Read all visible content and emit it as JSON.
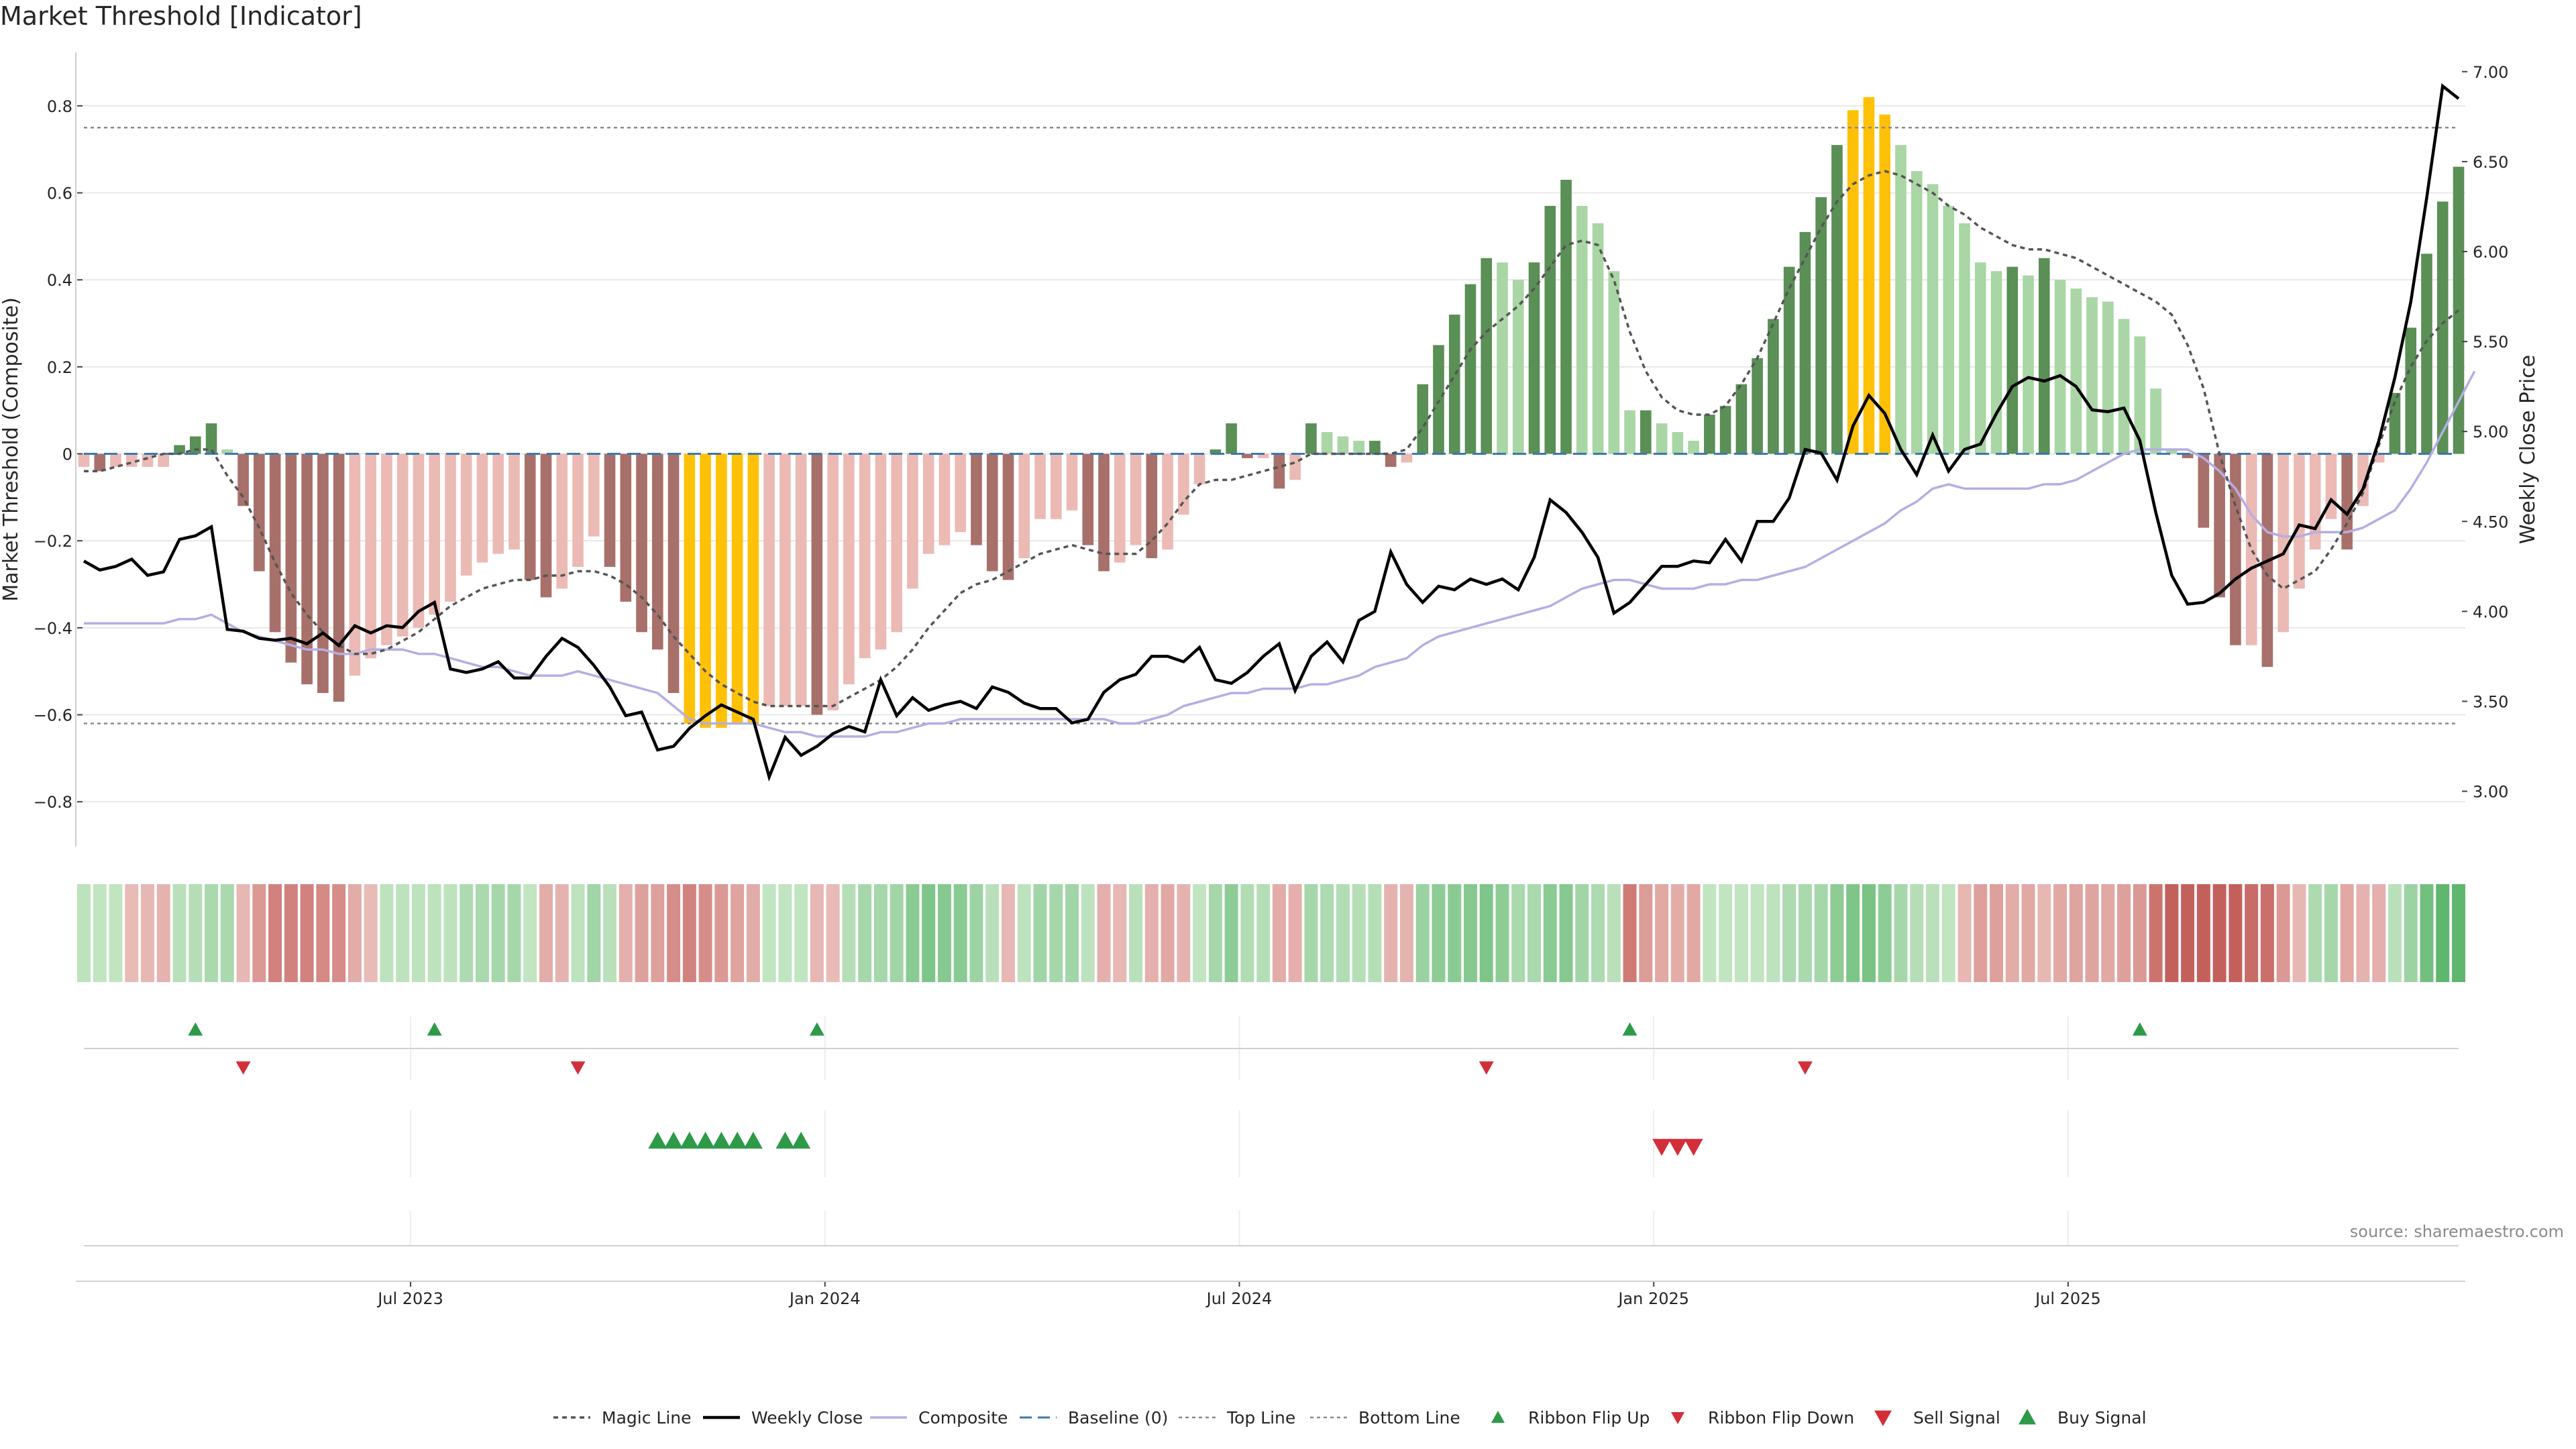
{
  "title": "Market Threshold [Indicator]",
  "source": "source: sharemaestro.com",
  "colors": {
    "dark_green": "#5a8f55",
    "light_green": "#a9d6a4",
    "dark_red": "#a8706a",
    "light_red": "#ebbab5",
    "gold": "#ffc107",
    "close": "#000000",
    "composite": "#b5aee3",
    "magic": "#555555",
    "baseline": "#3c78b0",
    "threshold_line": "#8a8a8a",
    "ribbon_up": "#2e9a48",
    "ribbon_down": "#d32f3a",
    "buy": "#2e9a48",
    "sell": "#d32f3a",
    "grid": "#e8e8e8"
  },
  "chart_data": {
    "type": "bar",
    "ylabel_left": "Market Threshold (Composite)",
    "ylabel_right": "Weekly Close Price",
    "ylim_left": [
      -0.9,
      0.92
    ],
    "ylim_right": [
      2.7,
      7.1
    ],
    "yticks_left": [
      "−0.8",
      "−0.6",
      "−0.4",
      "−0.2",
      "0",
      "0.2",
      "0.4",
      "0.6",
      "0.8"
    ],
    "yticks_right": [
      "3.00",
      "3.50",
      "4.00",
      "4.50",
      "5.00",
      "5.50",
      "6.00",
      "6.50",
      "7.00"
    ],
    "x_ticks": [
      {
        "label": "Jul 2023",
        "week": 20.5
      },
      {
        "label": "Jan 2024",
        "week": 46.5
      },
      {
        "label": "Jul 2024",
        "week": 72.5
      },
      {
        "label": "Jan 2025",
        "week": 98.5
      },
      {
        "label": "Jul 2025",
        "week": 124.5
      }
    ],
    "top_line": 0.75,
    "bottom_line": -0.62,
    "baseline": 0,
    "composite_values": [
      -0.03,
      -0.04,
      -0.03,
      -0.03,
      -0.03,
      -0.03,
      0.02,
      0.04,
      0.07,
      0.01,
      -0.12,
      -0.27,
      -0.41,
      -0.48,
      -0.53,
      -0.55,
      -0.57,
      -0.51,
      -0.47,
      -0.44,
      -0.42,
      -0.4,
      -0.37,
      -0.34,
      -0.28,
      -0.25,
      -0.23,
      -0.22,
      -0.29,
      -0.33,
      -0.31,
      -0.26,
      -0.19,
      -0.26,
      -0.34,
      -0.41,
      -0.45,
      -0.55,
      -0.62,
      -0.63,
      -0.63,
      -0.62,
      -0.62,
      -0.58,
      -0.58,
      -0.58,
      -0.6,
      -0.59,
      -0.53,
      -0.47,
      -0.45,
      -0.41,
      -0.31,
      -0.23,
      -0.21,
      -0.18,
      -0.21,
      -0.27,
      -0.29,
      -0.24,
      -0.15,
      -0.15,
      -0.13,
      -0.21,
      -0.27,
      -0.25,
      -0.21,
      -0.24,
      -0.22,
      -0.14,
      -0.07,
      0.01,
      0.07,
      -0.01,
      -0.01,
      -0.08,
      -0.06,
      0.07,
      0.05,
      0.04,
      0.03,
      0.03,
      -0.03,
      -0.02,
      0.16,
      0.25,
      0.32,
      0.39,
      0.45,
      0.44,
      0.4,
      0.44,
      0.57,
      0.63,
      0.57,
      0.53,
      0.42,
      0.1,
      0.1,
      0.07,
      0.05,
      0.03,
      0.09,
      0.11,
      0.16,
      0.22,
      0.31,
      0.43,
      0.51,
      0.59,
      0.71,
      0.79,
      0.82,
      0.78,
      0.71,
      0.65,
      0.62,
      0.57,
      0.53,
      0.44,
      0.42,
      0.43,
      0.41,
      0.45,
      0.4,
      0.38,
      0.36,
      0.35,
      0.31,
      0.27,
      0.15,
      0.01,
      -0.01,
      -0.17,
      -0.33,
      -0.44,
      -0.44,
      -0.49,
      -0.41,
      -0.31,
      -0.22,
      -0.15,
      -0.22,
      -0.12,
      -0.02,
      0.14,
      0.29,
      0.46,
      0.58,
      0.66
    ],
    "composite_line": [
      -0.39,
      -0.39,
      -0.39,
      -0.39,
      -0.39,
      -0.39,
      -0.38,
      -0.38,
      -0.37,
      -0.39,
      -0.41,
      -0.42,
      -0.43,
      -0.44,
      -0.45,
      -0.45,
      -0.46,
      -0.46,
      -0.45,
      -0.45,
      -0.45,
      -0.46,
      -0.46,
      -0.47,
      -0.48,
      -0.49,
      -0.49,
      -0.5,
      -0.51,
      -0.51,
      -0.51,
      -0.5,
      -0.51,
      -0.52,
      -0.53,
      -0.54,
      -0.55,
      -0.58,
      -0.61,
      -0.62,
      -0.62,
      -0.62,
      -0.62,
      -0.63,
      -0.64,
      -0.64,
      -0.65,
      -0.65,
      -0.65,
      -0.65,
      -0.64,
      -0.64,
      -0.63,
      -0.62,
      -0.62,
      -0.61,
      -0.61,
      -0.61,
      -0.61,
      -0.61,
      -0.61,
      -0.61,
      -0.61,
      -0.61,
      -0.61,
      -0.62,
      -0.62,
      -0.61,
      -0.6,
      -0.58,
      -0.57,
      -0.56,
      -0.55,
      -0.55,
      -0.54,
      -0.54,
      -0.54,
      -0.53,
      -0.53,
      -0.52,
      -0.51,
      -0.49,
      -0.48,
      -0.47,
      -0.44,
      -0.42,
      -0.41,
      -0.4,
      -0.39,
      -0.38,
      -0.37,
      -0.36,
      -0.35,
      -0.33,
      -0.31,
      -0.3,
      -0.29,
      -0.29,
      -0.3,
      -0.31,
      -0.31,
      -0.31,
      -0.3,
      -0.3,
      -0.29,
      -0.29,
      -0.28,
      -0.27,
      -0.26,
      -0.24,
      -0.22,
      -0.2,
      -0.18,
      -0.16,
      -0.13,
      -0.11,
      -0.08,
      -0.07,
      -0.08,
      -0.08,
      -0.08,
      -0.08,
      -0.08,
      -0.07,
      -0.07,
      -0.06,
      -0.04,
      -0.02,
      0.0,
      0.01,
      0.01,
      0.01,
      0.01,
      -0.01,
      -0.04,
      -0.08,
      -0.14,
      -0.18,
      -0.19,
      -0.19,
      -0.18,
      -0.18,
      -0.18,
      -0.17,
      -0.15,
      -0.13,
      -0.08,
      -0.02,
      0.05,
      0.12,
      0.19
    ],
    "magic_line": [
      -0.04,
      -0.04,
      -0.03,
      -0.02,
      -0.01,
      0.0,
      0.0,
      0.01,
      0.01,
      -0.05,
      -0.1,
      -0.17,
      -0.25,
      -0.32,
      -0.37,
      -0.41,
      -0.44,
      -0.46,
      -0.46,
      -0.45,
      -0.43,
      -0.41,
      -0.38,
      -0.35,
      -0.33,
      -0.31,
      -0.3,
      -0.29,
      -0.29,
      -0.28,
      -0.28,
      -0.27,
      -0.27,
      -0.28,
      -0.3,
      -0.33,
      -0.37,
      -0.42,
      -0.46,
      -0.5,
      -0.53,
      -0.55,
      -0.57,
      -0.58,
      -0.58,
      -0.58,
      -0.58,
      -0.58,
      -0.56,
      -0.54,
      -0.52,
      -0.49,
      -0.45,
      -0.4,
      -0.36,
      -0.32,
      -0.3,
      -0.29,
      -0.27,
      -0.25,
      -0.23,
      -0.22,
      -0.21,
      -0.22,
      -0.23,
      -0.23,
      -0.23,
      -0.2,
      -0.16,
      -0.11,
      -0.07,
      -0.06,
      -0.06,
      -0.05,
      -0.04,
      -0.03,
      -0.02,
      0.0,
      0.0,
      0.0,
      0.0,
      0.0,
      0.0,
      0.01,
      0.06,
      0.12,
      0.18,
      0.24,
      0.28,
      0.31,
      0.34,
      0.38,
      0.43,
      0.48,
      0.49,
      0.48,
      0.4,
      0.28,
      0.19,
      0.13,
      0.1,
      0.09,
      0.09,
      0.11,
      0.16,
      0.22,
      0.3,
      0.38,
      0.45,
      0.52,
      0.58,
      0.62,
      0.64,
      0.65,
      0.64,
      0.62,
      0.6,
      0.57,
      0.55,
      0.52,
      0.5,
      0.48,
      0.47,
      0.47,
      0.46,
      0.45,
      0.43,
      0.41,
      0.39,
      0.37,
      0.35,
      0.32,
      0.25,
      0.15,
      0.0,
      -0.12,
      -0.22,
      -0.28,
      -0.31,
      -0.29,
      -0.27,
      -0.22,
      -0.16,
      -0.09,
      0.02,
      0.12,
      0.2,
      0.26,
      0.3,
      0.33
    ],
    "weekly_close": [
      4.28,
      4.23,
      4.25,
      4.29,
      4.2,
      4.22,
      4.4,
      4.42,
      4.47,
      3.9,
      3.89,
      3.85,
      3.84,
      3.85,
      3.82,
      3.88,
      3.81,
      3.92,
      3.88,
      3.92,
      3.91,
      4.0,
      4.05,
      3.68,
      3.66,
      3.68,
      3.72,
      3.63,
      3.63,
      3.75,
      3.85,
      3.8,
      3.7,
      3.58,
      3.42,
      3.44,
      3.23,
      3.25,
      3.35,
      3.42,
      3.48,
      3.44,
      3.4,
      3.08,
      3.3,
      3.2,
      3.25,
      3.32,
      3.36,
      3.33,
      3.62,
      3.42,
      3.52,
      3.45,
      3.48,
      3.5,
      3.46,
      3.58,
      3.55,
      3.49,
      3.46,
      3.46,
      3.38,
      3.4,
      3.55,
      3.62,
      3.65,
      3.75,
      3.75,
      3.72,
      3.8,
      3.62,
      3.6,
      3.66,
      3.75,
      3.82,
      3.56,
      3.75,
      3.83,
      3.72,
      3.95,
      4.0,
      4.33,
      4.15,
      4.05,
      4.14,
      4.12,
      4.18,
      4.15,
      4.18,
      4.12,
      4.3,
      4.62,
      4.55,
      4.44,
      4.3,
      3.99,
      4.05,
      4.15,
      4.25,
      4.25,
      4.28,
      4.27,
      4.4,
      4.28,
      4.5,
      4.5,
      4.63,
      4.9,
      4.88,
      4.73,
      5.03,
      5.2,
      5.1,
      4.9,
      4.76,
      4.98,
      4.78,
      4.9,
      4.93,
      5.1,
      5.25,
      5.3,
      5.28,
      5.31,
      5.25,
      5.12,
      5.11,
      5.13,
      4.95,
      4.55,
      4.2,
      4.04,
      4.05,
      4.1,
      4.18,
      4.24,
      4.28,
      4.32,
      4.48,
      4.46,
      4.62,
      4.54,
      4.68,
      4.95,
      5.3,
      5.72,
      6.3,
      6.92,
      6.85
    ],
    "ribbon_flip_up_weeks": [
      7,
      22,
      46,
      97,
      129
    ],
    "ribbon_flip_down_weeks": [
      10,
      31,
      88,
      108
    ],
    "buy_signal_weeks": [
      36,
      37,
      38,
      39,
      40,
      41,
      42,
      44,
      45
    ],
    "sell_signal_weeks": [
      99,
      100,
      101
    ],
    "legend": [
      "Magic Line",
      "Weekly Close",
      "Composite",
      "Baseline (0)",
      "Top Line",
      "Bottom Line",
      "Ribbon Flip Up",
      "Ribbon Flip Down",
      "Sell Signal",
      "Buy Signal"
    ]
  }
}
